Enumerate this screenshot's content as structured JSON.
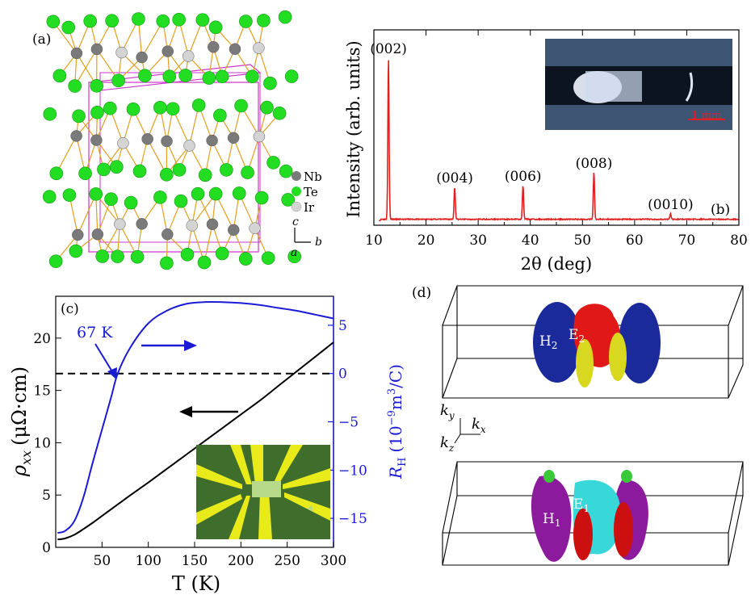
{
  "colors": {
    "xrd": "#e02020",
    "rho": "#000000",
    "rh": "#1b1bd6",
    "nb": "#7a7a7a",
    "te": "#22dd22",
    "ir": "#d4d4d4",
    "cell": "#cc33cc",
    "bond": "#e0a020"
  },
  "panel_a": {
    "label": "(a)",
    "legend": [
      {
        "name": "Nb"
      },
      {
        "name": "Te"
      },
      {
        "name": "Ir"
      }
    ],
    "axes": {
      "c": "c",
      "b": "b",
      "a": "a"
    }
  },
  "panel_d": {
    "label": "(d)",
    "top_labels": [
      "H",
      "2",
      "E",
      "2"
    ],
    "bottom_labels": [
      "H",
      "1",
      "E",
      "1"
    ],
    "kaxes": {
      "ky": "k",
      "ky_sub": "y",
      "kx": "k",
      "kx_sub": "x",
      "kz": "k",
      "kz_sub": "z"
    }
  },
  "chart_data": [
    {
      "type": "line",
      "panel": "(b)",
      "title": "",
      "xlabel": "2θ (deg)",
      "ylabel": "Intensity (arb. units)",
      "xlim": [
        10,
        80
      ],
      "xticks": [
        10,
        20,
        30,
        40,
        50,
        60,
        70,
        80
      ],
      "peaks": [
        {
          "label": "(002)",
          "x": 12.8,
          "height": 1.0
        },
        {
          "label": "(004)",
          "x": 25.5,
          "height": 0.2
        },
        {
          "label": "(006)",
          "x": 38.6,
          "height": 0.21
        },
        {
          "label": "(008)",
          "x": 52.2,
          "height": 0.29
        },
        {
          "label": "(0010)",
          "x": 66.9,
          "height": 0.035
        }
      ],
      "inset_scale": "1 mm"
    },
    {
      "type": "line",
      "panel": "(c)",
      "xlabel": "T (K)",
      "ylabel_left": "ρxx (μΩ·cm)",
      "ylabel_left_main": "ρ",
      "ylabel_left_sub": "xx",
      "ylabel_left_unit": "(μΩ·cm)",
      "ylabel_right": "RH (10⁻⁹m³/C)",
      "ylabel_right_main": "R",
      "ylabel_right_sub": "H",
      "ylabel_right_unit": "(10",
      "ylabel_right_exp": "−9",
      "ylabel_right_tail": "m",
      "ylabel_right_tail_exp": "3",
      "ylabel_right_end": "/C)",
      "xlim": [
        0,
        300
      ],
      "xticks": [
        50,
        100,
        150,
        200,
        250,
        300
      ],
      "ylim_left": [
        0,
        24
      ],
      "yticks_left": [
        0,
        5,
        10,
        15,
        20
      ],
      "ylim_right": [
        -18,
        8
      ],
      "yticks_right": [
        5,
        0,
        -5,
        -10,
        -15
      ],
      "ytick_right_labels": [
        "5",
        "0",
        "−5",
        "−10",
        "−15"
      ],
      "annotation": "67 K",
      "zero_line": 0,
      "series": [
        {
          "name": "rho_xx",
          "axis": "left",
          "x": [
            2,
            10,
            20,
            30,
            40,
            50,
            60,
            70,
            80,
            100,
            120,
            140,
            160,
            180,
            200,
            220,
            240,
            260,
            280,
            300
          ],
          "y": [
            0.75,
            0.85,
            1.2,
            1.75,
            2.35,
            3.0,
            3.65,
            4.3,
            4.95,
            6.2,
            7.5,
            8.8,
            10.1,
            11.4,
            12.7,
            14.0,
            15.4,
            16.8,
            18.2,
            19.6
          ]
        },
        {
          "name": "R_H",
          "axis": "right",
          "x": [
            2,
            10,
            20,
            30,
            40,
            50,
            60,
            67,
            80,
            100,
            120,
            140,
            160,
            180,
            200,
            220,
            240,
            260,
            280,
            300
          ],
          "y": [
            -16.5,
            -16.3,
            -15.3,
            -12.8,
            -9.2,
            -5.8,
            -2.4,
            0.0,
            2.6,
            5.2,
            6.5,
            7.2,
            7.4,
            7.4,
            7.3,
            7.1,
            6.8,
            6.5,
            6.1,
            5.7
          ]
        }
      ]
    }
  ]
}
